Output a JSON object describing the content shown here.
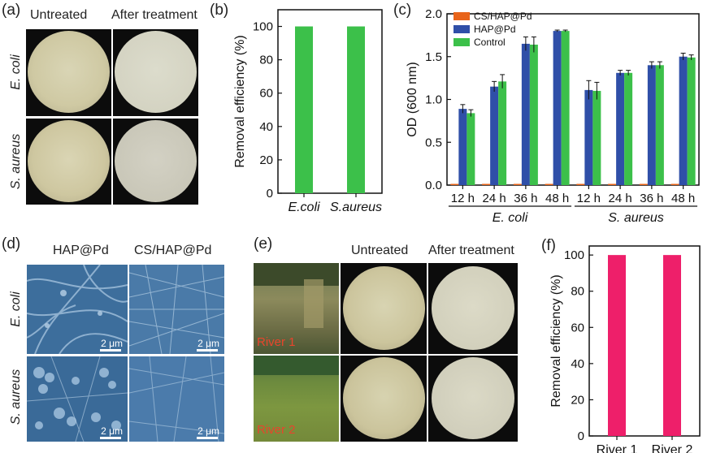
{
  "panel_a": {
    "label": "(a)",
    "col_headers": [
      "Untreated",
      "After treatment"
    ],
    "row_labels": [
      "E. coli",
      "S. aureus"
    ]
  },
  "panel_b": {
    "label": "(b)",
    "chart_data": {
      "type": "bar",
      "categories": [
        "E.coli",
        "S.aureus"
      ],
      "values": [
        100,
        100
      ],
      "ylabel": "Removal efficiency (%)",
      "ylim": [
        0,
        110
      ],
      "yticks": [
        0,
        20,
        40,
        60,
        80,
        100
      ],
      "color": "#3cc04a"
    }
  },
  "panel_c": {
    "label": "(c)",
    "chart_data": {
      "type": "bar",
      "ylabel": "OD (600 nm)",
      "ylim": [
        0,
        2.0
      ],
      "yticks": [
        "0.0",
        "0.5",
        "1.0",
        "1.5",
        "2.0"
      ],
      "categories": [
        "12 h",
        "24 h",
        "36 h",
        "48 h",
        "12 h",
        "24 h",
        "36 h",
        "48 h"
      ],
      "groups": [
        {
          "name": "E. coli",
          "span": [
            0,
            3
          ]
        },
        {
          "name": "S. aureus",
          "span": [
            4,
            7
          ]
        }
      ],
      "series": [
        {
          "name": "CS/HAP@Pd",
          "color": "#e8641a",
          "values": [
            0.01,
            0.01,
            0.01,
            0.01,
            0.01,
            0.01,
            0.01,
            0.01
          ],
          "errors": [
            0.005,
            0.005,
            0.005,
            0.005,
            0.005,
            0.005,
            0.005,
            0.005
          ]
        },
        {
          "name": "HAP@Pd",
          "color": "#2f4fa8",
          "values": [
            0.89,
            1.15,
            1.65,
            1.8,
            1.11,
            1.31,
            1.4,
            1.5
          ],
          "errors": [
            0.05,
            0.06,
            0.08,
            0.01,
            0.11,
            0.03,
            0.04,
            0.04
          ]
        },
        {
          "name": "Control",
          "color": "#3cc04a",
          "values": [
            0.84,
            1.21,
            1.64,
            1.8,
            1.1,
            1.31,
            1.4,
            1.49
          ],
          "errors": [
            0.04,
            0.08,
            0.09,
            0.01,
            0.1,
            0.03,
            0.04,
            0.03
          ]
        }
      ]
    }
  },
  "panel_d": {
    "label": "(d)",
    "col_headers": [
      "HAP@Pd",
      "CS/HAP@Pd"
    ],
    "row_labels": [
      "E. coli",
      "S. aureus"
    ],
    "scale_bar": "2 μm"
  },
  "panel_e": {
    "label": "(e)",
    "col_headers": [
      "Untreated",
      "After treatment"
    ],
    "river_labels": [
      "River 1",
      "River 2"
    ]
  },
  "panel_f": {
    "label": "(f)",
    "chart_data": {
      "type": "bar",
      "categories": [
        "River 1",
        "River 2"
      ],
      "values": [
        100,
        100
      ],
      "ylabel": "Removal efficiency (%)",
      "ylim": [
        0,
        105
      ],
      "yticks": [
        0,
        20,
        40,
        60,
        80,
        100
      ],
      "color": "#ee1f6a"
    }
  }
}
